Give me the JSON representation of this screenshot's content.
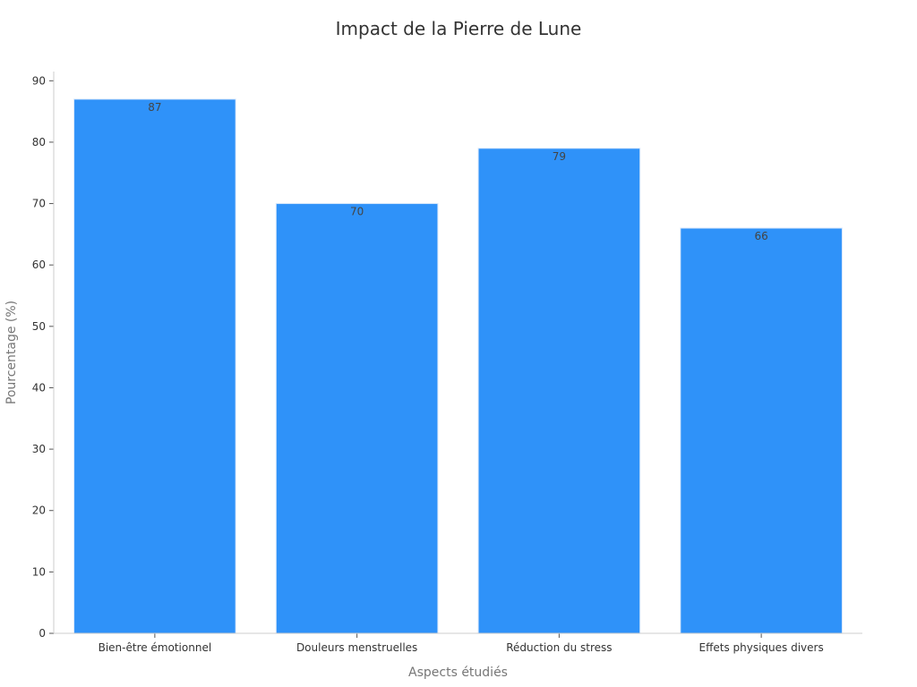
{
  "chart_data": {
    "type": "bar",
    "title": "Impact de la Pierre de Lune",
    "xlabel": "Aspects étudiés",
    "ylabel": "Pourcentage (%)",
    "categories": [
      "Bien-être émotionnel",
      "Douleurs menstruelles",
      "Réduction du stress",
      "Effets physiques divers"
    ],
    "values": [
      87,
      70,
      79,
      66
    ],
    "ylim": [
      0,
      90
    ],
    "yticks": [
      0,
      10,
      20,
      30,
      40,
      50,
      60,
      70,
      80,
      90
    ],
    "bar_color": "#2f92f9",
    "grid": false,
    "legend": "none"
  }
}
